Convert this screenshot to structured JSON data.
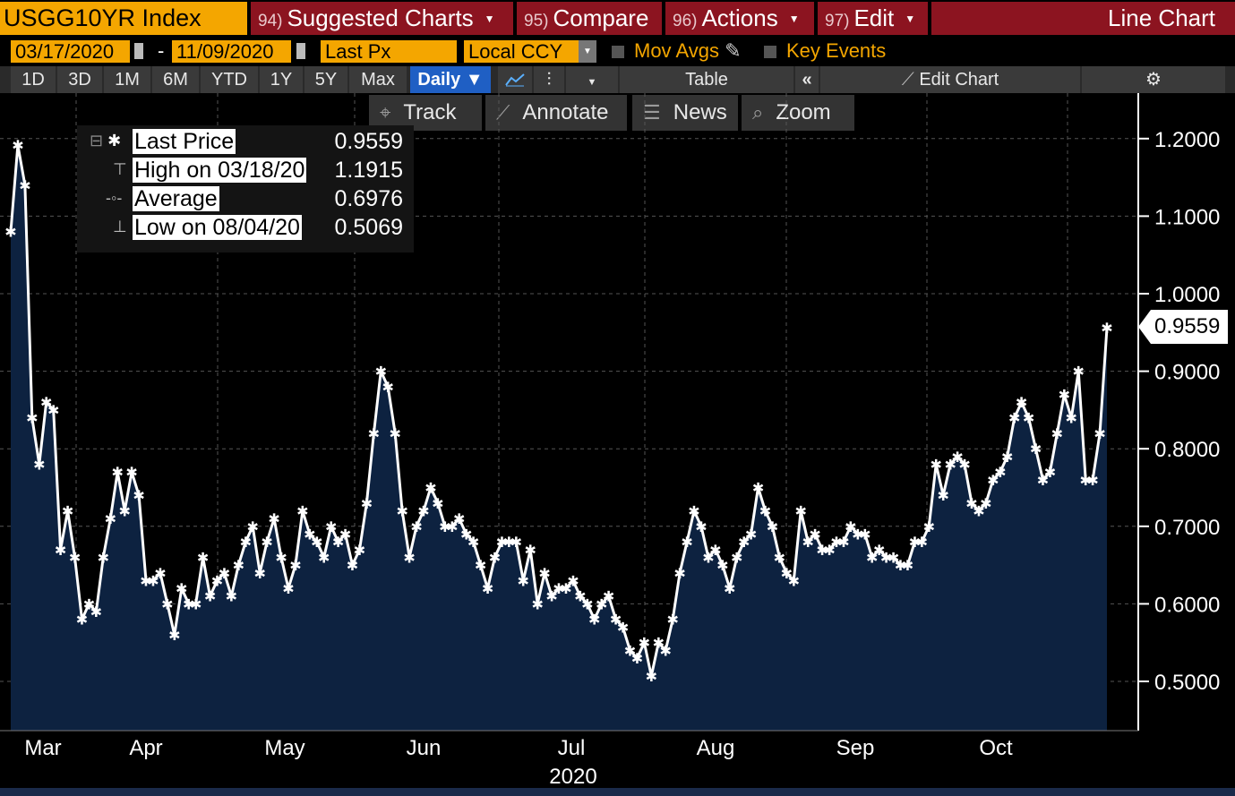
{
  "header": {
    "ticker": "USGG10YR Index",
    "menus": [
      {
        "num": "94)",
        "label": "Suggested Charts"
      },
      {
        "num": "95)",
        "label": "Compare"
      },
      {
        "num": "96)",
        "label": "Actions"
      },
      {
        "num": "97)",
        "label": "Edit"
      }
    ],
    "chart_type_label": "Line Chart"
  },
  "controls": {
    "start_date": "03/17/2020",
    "end_date": "11/09/2020",
    "date_separator": "-",
    "field": "Last Px",
    "currency": "Local CCY",
    "mov_avgs_label": "Mov Avgs",
    "key_events_label": "Key Events"
  },
  "periods": [
    "1D",
    "3D",
    "1M",
    "6M",
    "YTD",
    "1Y",
    "5Y",
    "Max"
  ],
  "frequency": "Daily",
  "toolbar": {
    "table_label": "Table",
    "collapse_glyph": "«",
    "edit_chart_label": "Edit Chart",
    "track_label": "Track",
    "annotate_label": "Annotate",
    "news_label": "News",
    "zoom_label": "Zoom"
  },
  "legend": [
    {
      "name": "Last Price",
      "value": "0.9559",
      "icon": "asterisk-icon"
    },
    {
      "name": "High on 03/18/20",
      "value": "1.1915",
      "icon": "high-marker-icon"
    },
    {
      "name": "Average",
      "value": "0.6976",
      "icon": "average-marker-icon"
    },
    {
      "name": "Low on 08/04/20",
      "value": "0.5069",
      "icon": "low-marker-icon"
    }
  ],
  "last_value_tag": "0.9559",
  "colors": {
    "accent_orange": "#f4a600",
    "menu_red": "#8c1420",
    "active_blue": "#1f5fc4",
    "area_fill": "#0d2240"
  },
  "chart_data": {
    "type": "area",
    "y_ticks": [
      "1.2000",
      "1.1000",
      "1.0000",
      "0.9000",
      "0.8000",
      "0.7000",
      "0.6000",
      "0.5000"
    ],
    "x_month_labels": [
      "Mar",
      "Apr",
      "May",
      "Jun",
      "Jul",
      "Aug",
      "Sep",
      "Oct"
    ],
    "x_year_label": "2020",
    "grid": true,
    "ylim": [
      0.45,
      1.24
    ],
    "series": [
      {
        "values": [
          1.08,
          1.1915,
          1.14,
          0.84,
          0.78,
          0.86,
          0.85,
          0.67,
          0.72,
          0.66,
          0.58,
          0.6,
          0.59,
          0.66,
          0.71,
          0.77,
          0.72,
          0.77,
          0.74,
          0.63,
          0.63,
          0.64,
          0.6,
          0.56,
          0.62,
          0.6,
          0.6,
          0.66,
          0.61,
          0.63,
          0.64,
          0.61,
          0.65,
          0.68,
          0.7,
          0.64,
          0.68,
          0.71,
          0.66,
          0.62,
          0.65,
          0.72,
          0.69,
          0.68,
          0.66,
          0.7,
          0.68,
          0.69,
          0.65,
          0.67,
          0.73,
          0.82,
          0.9,
          0.88,
          0.82,
          0.72,
          0.66,
          0.7,
          0.72,
          0.75,
          0.73,
          0.7,
          0.7,
          0.71,
          0.69,
          0.68,
          0.65,
          0.62,
          0.66,
          0.68,
          0.68,
          0.68,
          0.63,
          0.67,
          0.6,
          0.64,
          0.61,
          0.62,
          0.62,
          0.63,
          0.61,
          0.6,
          0.58,
          0.6,
          0.61,
          0.58,
          0.57,
          0.54,
          0.53,
          0.55,
          0.5069,
          0.55,
          0.54,
          0.58,
          0.64,
          0.68,
          0.72,
          0.7,
          0.66,
          0.67,
          0.65,
          0.62,
          0.66,
          0.68,
          0.69,
          0.75,
          0.72,
          0.7,
          0.66,
          0.64,
          0.63,
          0.72,
          0.68,
          0.69,
          0.67,
          0.67,
          0.68,
          0.68,
          0.7,
          0.69,
          0.69,
          0.66,
          0.67,
          0.66,
          0.66,
          0.65,
          0.65,
          0.68,
          0.68,
          0.7,
          0.78,
          0.74,
          0.78,
          0.79,
          0.78,
          0.73,
          0.72,
          0.73,
          0.76,
          0.77,
          0.79,
          0.84,
          0.86,
          0.84,
          0.8,
          0.76,
          0.77,
          0.82,
          0.87,
          0.84,
          0.9,
          0.76,
          0.76,
          0.82,
          0.9559
        ]
      }
    ]
  }
}
